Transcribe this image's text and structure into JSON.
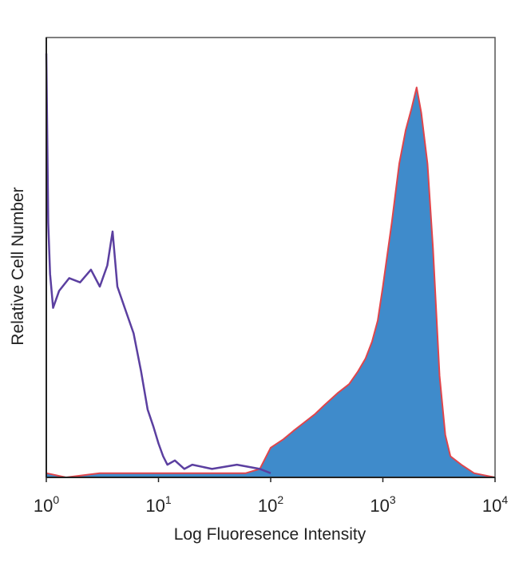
{
  "chart_data": {
    "type": "area",
    "title": "",
    "xlabel": "Log Fluoresence Intensity",
    "ylabel": "Relative Cell Number",
    "x_scale": "log",
    "xlim": [
      1,
      10000
    ],
    "ylim": [
      0,
      100
    ],
    "grid": false,
    "legend": "none",
    "x_ticks": [
      {
        "value": 1,
        "base": "10",
        "exp": "0"
      },
      {
        "value": 10,
        "base": "10",
        "exp": "1"
      },
      {
        "value": 100,
        "base": "10",
        "exp": "2"
      },
      {
        "value": 1000,
        "base": "10",
        "exp": "3"
      },
      {
        "value": 10000,
        "base": "10",
        "exp": "4"
      }
    ],
    "series": [
      {
        "style": "filled",
        "fill_color": "#3f8bcb",
        "outline_color": "#e0454b",
        "x": [
          1,
          1.5,
          3,
          10,
          20,
          40,
          60,
          80,
          100,
          130,
          160,
          200,
          250,
          300,
          400,
          500,
          600,
          700,
          800,
          900,
          1000,
          1200,
          1400,
          1600,
          1800,
          2000,
          2200,
          2500,
          2800,
          3200,
          3600,
          4000,
          5000,
          6500,
          8000,
          10000
        ],
        "y": [
          1,
          0,
          1,
          1,
          1,
          1,
          1,
          2,
          7,
          9,
          11,
          13,
          15,
          17,
          20,
          22,
          25,
          28,
          32,
          37,
          45,
          60,
          74,
          82,
          87,
          92,
          86,
          74,
          54,
          24,
          10,
          5,
          3,
          1,
          0.5,
          0
        ]
      },
      {
        "style": "line",
        "line_color": "#5b3fa0",
        "x": [
          1,
          1.04,
          1.08,
          1.15,
          1.3,
          1.6,
          2,
          2.5,
          3,
          3.5,
          3.9,
          4.3,
          5,
          6,
          7,
          8,
          9,
          10,
          11,
          12,
          14,
          17,
          20,
          30,
          50,
          80,
          100
        ],
        "y": [
          100,
          60,
          48,
          40,
          44,
          47,
          46,
          49,
          45,
          50,
          58,
          45,
          40,
          34,
          25,
          16,
          12,
          8,
          5,
          3,
          4,
          2,
          3,
          2,
          3,
          2,
          1
        ]
      }
    ]
  }
}
